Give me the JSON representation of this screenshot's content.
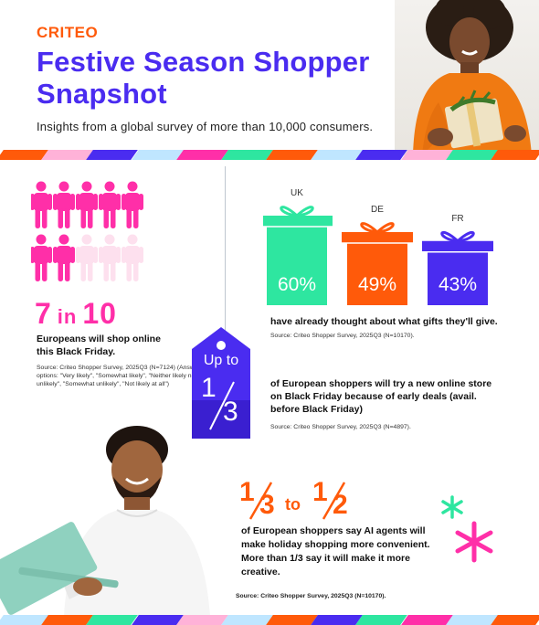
{
  "brand": "CRITEO",
  "title": "Festive Season Shopper Snapshot",
  "subtitle": "Insights from a global survey of more than 10,000 consumers.",
  "stat_black_friday": {
    "value": "7 in 10",
    "value_lead": "7",
    "value_mid": "in",
    "value_tail": "10",
    "text": "Europeans will shop online this Black Friday.",
    "source": "Source: Criteo Shopper Survey, 2025Q3 (N=7124) (Answer options: \"Very likely\", \"Somewhat likely\", \"Neither likely nor unlikely\", \"Somewhat unlikely\", \"Not likely at all\")",
    "people_filled": 7,
    "people_total": 10,
    "filled_color": "#ff2fa8",
    "empty_color": "#fde0ee"
  },
  "gifts": {
    "items": [
      {
        "country": "UK",
        "value": 60,
        "label": "60%",
        "color": "#2ee6a0"
      },
      {
        "country": "DE",
        "value": 49,
        "label": "49%",
        "color": "#ff5a0a"
      },
      {
        "country": "FR",
        "value": 43,
        "label": "43%",
        "color": "#4a2cf0"
      }
    ],
    "text": "have already thought about what gifts they'll give.",
    "source": "Source: Criteo Shopper Survey, 2025Q3 (N=10170)."
  },
  "new_store": {
    "tag_line1": "Up to",
    "tag_fraction_num": "1",
    "tag_fraction_den": "3",
    "text": "of European shoppers will try a new online store on Black Friday because of early deals (avail. before Black Friday)",
    "source": "Source: Criteo Shopper Survey, 2025Q3 (N=4897)."
  },
  "ai_agents": {
    "from_num": "1",
    "from_den": "3",
    "connector": "to",
    "to_num": "1",
    "to_den": "2",
    "text": "of European shoppers say AI agents will make holiday shopping more convenient. More than 1/3 say it will make it more creative.",
    "source": "Source: Criteo Shopper Survey, 2025Q3 (N=10170)."
  },
  "colors": {
    "purple": "#4a2cf0",
    "orange": "#ff5a0a",
    "pink": "#ff2fa8",
    "green": "#2ee6a0",
    "lightblue": "#bfe6ff"
  }
}
